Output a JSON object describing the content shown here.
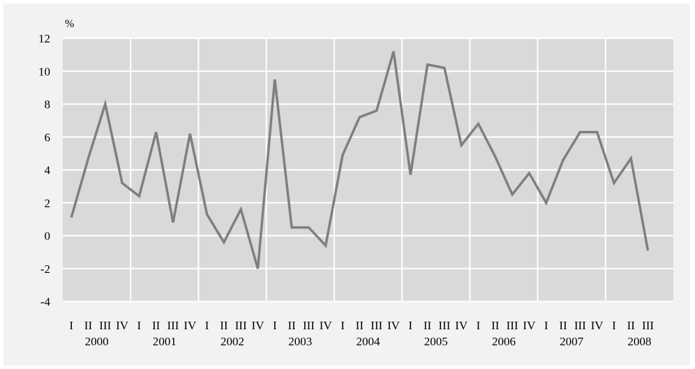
{
  "chart_data": {
    "type": "line",
    "ylabel": "%",
    "ylim": [
      -4,
      12
    ],
    "yticks": [
      -4,
      -2,
      0,
      2,
      4,
      6,
      8,
      10,
      12
    ],
    "grid": true,
    "quarter_labels": [
      "I",
      "II",
      "III",
      "IV"
    ],
    "years": [
      "2000",
      "2001",
      "2002",
      "2003",
      "2004",
      "2005",
      "2006",
      "2007",
      "2008"
    ],
    "x": [
      "2000 I",
      "2000 II",
      "2000 III",
      "2000 IV",
      "2001 I",
      "2001 II",
      "2001 III",
      "2001 IV",
      "2002 I",
      "2002 II",
      "2002 III",
      "2002 IV",
      "2003 I",
      "2003 II",
      "2003 III",
      "2003 IV",
      "2004 I",
      "2004 II",
      "2004 III",
      "2004 IV",
      "2005 I",
      "2005 II",
      "2005 III",
      "2005 IV",
      "2006 I",
      "2006 II",
      "2006 III",
      "2006 IV",
      "2007 I",
      "2007 II",
      "2007 III",
      "2007 IV",
      "2008 I",
      "2008 II",
      "2008 III"
    ],
    "series": [
      {
        "values": [
          1.1,
          4.7,
          8.0,
          3.2,
          2.4,
          6.3,
          0.8,
          6.2,
          1.3,
          -0.4,
          1.6,
          -2.0,
          9.5,
          0.5,
          0.5,
          -0.6,
          4.9,
          7.2,
          7.6,
          11.2,
          3.7,
          10.4,
          10.2,
          5.5,
          6.8,
          4.8,
          2.5,
          3.8,
          2.0,
          4.6,
          6.3,
          6.3,
          3.2,
          4.7,
          -0.9
        ]
      }
    ],
    "colors": {
      "line": "#7f7f7f",
      "plot_bg": "#d9d9d9",
      "frame_bg": "#f2f2f2",
      "grid": "#ffffff"
    }
  }
}
